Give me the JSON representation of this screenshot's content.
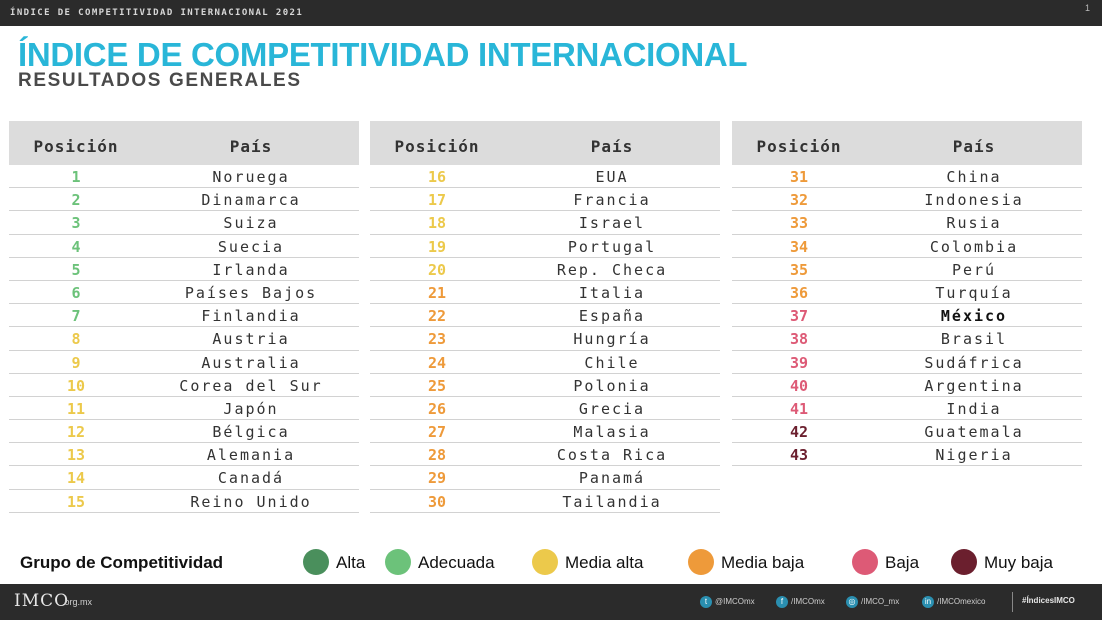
{
  "header": {
    "topbar_title": "ÍNDICE DE COMPETITIVIDAD INTERNACIONAL 2021",
    "page_number": "1",
    "title": "ÍNDICE DE COMPETITIVIDAD INTERNACIONAL",
    "subtitle": "RESULTADOS GENERALES"
  },
  "colors": {
    "alta": "#4a8f5c",
    "adecuada": "#6cc27a",
    "media_alta": "#ecc94b",
    "media_baja": "#ee9a3a",
    "baja": "#dd5a76",
    "muy_baja": "#6b1f2e",
    "title": "#29b6d8"
  },
  "table_headers": {
    "position": "Posición",
    "country": "País"
  },
  "tables": [
    {
      "rows": [
        {
          "pos": "1",
          "country": "Noruega",
          "group": "adecuada"
        },
        {
          "pos": "2",
          "country": "Dinamarca",
          "group": "adecuada"
        },
        {
          "pos": "3",
          "country": "Suiza",
          "group": "adecuada"
        },
        {
          "pos": "4",
          "country": "Suecia",
          "group": "adecuada"
        },
        {
          "pos": "5",
          "country": "Irlanda",
          "group": "adecuada"
        },
        {
          "pos": "6",
          "country": "Países Bajos",
          "group": "adecuada"
        },
        {
          "pos": "7",
          "country": "Finlandia",
          "group": "adecuada"
        },
        {
          "pos": "8",
          "country": "Austria",
          "group": "media_alta"
        },
        {
          "pos": "9",
          "country": "Australia",
          "group": "media_alta"
        },
        {
          "pos": "10",
          "country": "Corea del Sur",
          "group": "media_alta"
        },
        {
          "pos": "11",
          "country": "Japón",
          "group": "media_alta"
        },
        {
          "pos": "12",
          "country": "Bélgica",
          "group": "media_alta"
        },
        {
          "pos": "13",
          "country": "Alemania",
          "group": "media_alta"
        },
        {
          "pos": "14",
          "country": "Canadá",
          "group": "media_alta"
        },
        {
          "pos": "15",
          "country": "Reino Unido",
          "group": "media_alta"
        }
      ]
    },
    {
      "rows": [
        {
          "pos": "16",
          "country": "EUA",
          "group": "media_alta"
        },
        {
          "pos": "17",
          "country": "Francia",
          "group": "media_alta"
        },
        {
          "pos": "18",
          "country": "Israel",
          "group": "media_alta"
        },
        {
          "pos": "19",
          "country": "Portugal",
          "group": "media_alta"
        },
        {
          "pos": "20",
          "country": "Rep. Checa",
          "group": "media_alta"
        },
        {
          "pos": "21",
          "country": "Italia",
          "group": "media_baja"
        },
        {
          "pos": "22",
          "country": "España",
          "group": "media_baja"
        },
        {
          "pos": "23",
          "country": "Hungría",
          "group": "media_baja"
        },
        {
          "pos": "24",
          "country": "Chile",
          "group": "media_baja"
        },
        {
          "pos": "25",
          "country": "Polonia",
          "group": "media_baja"
        },
        {
          "pos": "26",
          "country": "Grecia",
          "group": "media_baja"
        },
        {
          "pos": "27",
          "country": "Malasia",
          "group": "media_baja"
        },
        {
          "pos": "28",
          "country": "Costa Rica",
          "group": "media_baja"
        },
        {
          "pos": "29",
          "country": "Panamá",
          "group": "media_baja"
        },
        {
          "pos": "30",
          "country": "Tailandia",
          "group": "media_baja"
        }
      ]
    },
    {
      "rows": [
        {
          "pos": "31",
          "country": "China",
          "group": "media_baja"
        },
        {
          "pos": "32",
          "country": "Indonesia",
          "group": "media_baja"
        },
        {
          "pos": "33",
          "country": "Rusia",
          "group": "media_baja"
        },
        {
          "pos": "34",
          "country": "Colombia",
          "group": "media_baja"
        },
        {
          "pos": "35",
          "country": "Perú",
          "group": "media_baja"
        },
        {
          "pos": "36",
          "country": "Turquía",
          "group": "media_baja"
        },
        {
          "pos": "37",
          "country": "México",
          "group": "baja",
          "highlight": true
        },
        {
          "pos": "38",
          "country": "Brasil",
          "group": "baja"
        },
        {
          "pos": "39",
          "country": "Sudáfrica",
          "group": "baja"
        },
        {
          "pos": "40",
          "country": "Argentina",
          "group": "baja"
        },
        {
          "pos": "41",
          "country": "India",
          "group": "baja"
        },
        {
          "pos": "42",
          "country": "Guatemala",
          "group": "muy_baja"
        },
        {
          "pos": "43",
          "country": "Nigeria",
          "group": "muy_baja"
        }
      ]
    }
  ],
  "legend": {
    "title": "Grupo de Competitividad",
    "items": [
      {
        "key": "alta",
        "label": "Alta"
      },
      {
        "key": "adecuada",
        "label": "Adecuada"
      },
      {
        "key": "media_alta",
        "label": "Media alta"
      },
      {
        "key": "media_baja",
        "label": "Media baja"
      },
      {
        "key": "baja",
        "label": "Baja"
      },
      {
        "key": "muy_baja",
        "label": "Muy baja"
      }
    ]
  },
  "footer": {
    "logo": "IMCO",
    "logo_domain": ".org.mx",
    "social": [
      {
        "icon": "twitter-icon",
        "glyph": "t",
        "text": "@IMCOmx"
      },
      {
        "icon": "facebook-icon",
        "glyph": "f",
        "text": "/IMCOmx"
      },
      {
        "icon": "instagram-icon",
        "glyph": "◎",
        "text": "/IMCO_mx"
      },
      {
        "icon": "linkedin-icon",
        "glyph": "in",
        "text": "/IMCOmexico"
      }
    ],
    "hashtag": "#ÍndicesIMCO"
  }
}
